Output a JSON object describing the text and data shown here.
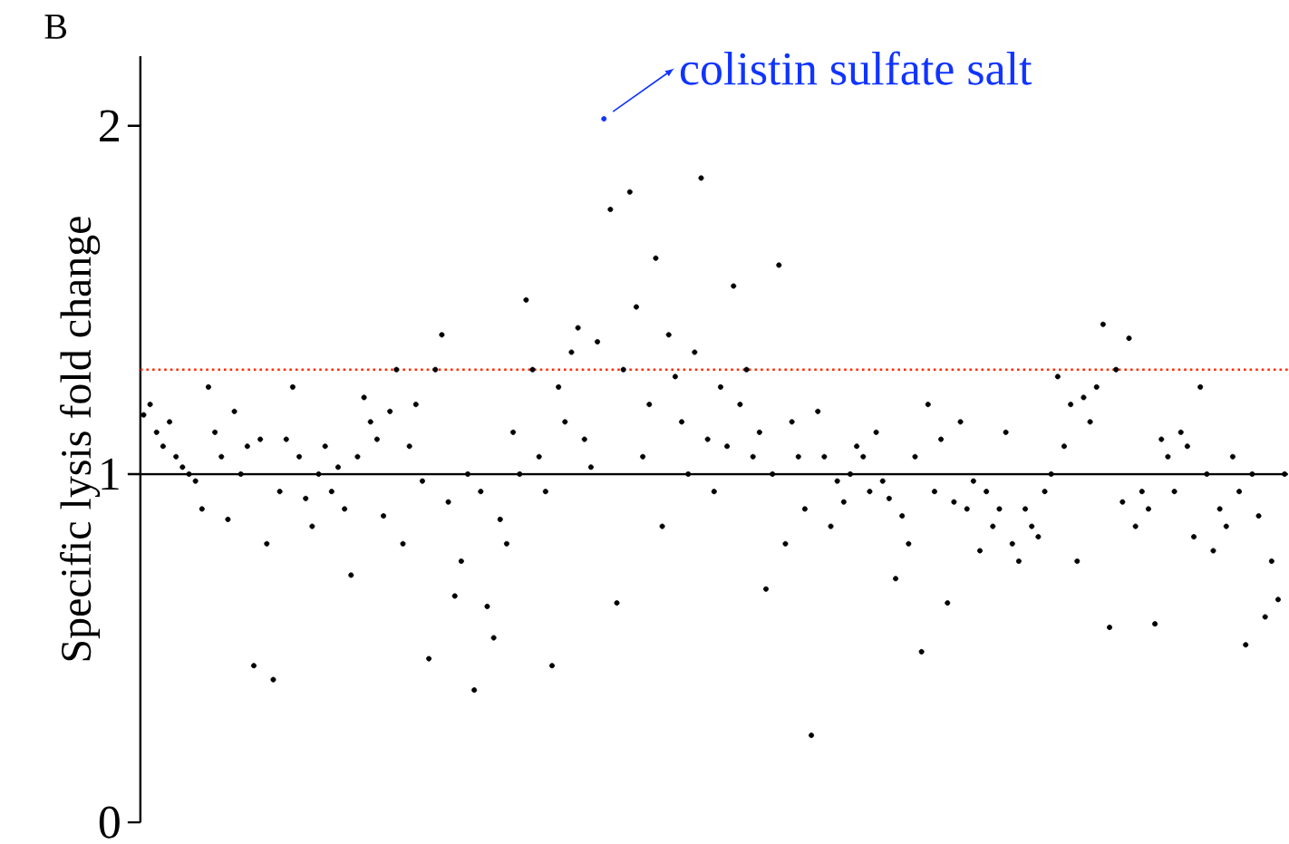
{
  "chart_data": {
    "type": "scatter",
    "title": "B",
    "ylabel": "Specific lysis fold change",
    "categories": [
      null,
      null,
      null,
      null,
      null,
      null,
      null,
      null,
      null,
      null,
      null,
      null,
      null,
      null,
      null,
      null,
      null,
      null,
      null,
      null,
      null,
      null,
      null,
      null,
      null,
      null,
      null,
      null,
      null,
      null,
      null,
      null,
      null,
      null,
      null,
      null,
      null,
      null,
      null,
      null,
      null,
      null,
      null,
      null,
      null,
      null,
      null,
      null,
      null,
      null,
      null,
      null,
      null,
      null,
      null,
      null,
      null,
      null,
      null,
      null,
      null,
      null,
      null,
      null,
      null,
      null,
      null,
      null,
      null,
      null,
      null,
      null,
      null,
      null,
      null,
      null,
      null,
      null,
      null,
      null,
      null,
      null,
      null,
      null,
      null,
      null,
      null,
      null,
      null,
      null,
      null,
      null,
      null,
      null,
      null,
      null,
      null,
      null,
      null,
      null,
      null,
      null,
      null,
      null,
      null,
      null,
      null,
      null,
      null,
      null,
      null,
      null,
      null,
      null,
      null,
      null,
      null,
      null,
      null,
      null,
      null,
      null,
      null,
      null,
      null,
      null,
      null,
      null,
      null,
      null,
      null,
      null,
      null,
      null,
      null,
      null,
      null,
      null,
      null,
      null,
      null,
      null,
      null,
      null,
      null,
      null,
      null,
      null,
      null,
      null,
      null,
      null,
      null,
      null,
      null,
      null,
      null,
      null,
      null,
      null,
      null,
      null,
      null,
      null,
      null,
      null,
      null,
      null,
      null,
      null,
      null,
      null,
      null,
      null,
      null,
      null,
      null
    ],
    "values": [
      1.17,
      1.2,
      1.12,
      1.08,
      1.15,
      1.05,
      1.02,
      1.0,
      0.98,
      0.9,
      1.25,
      1.12,
      1.05,
      0.87,
      1.18,
      1.0,
      1.08,
      0.45,
      1.1,
      0.8,
      0.41,
      0.95,
      1.1,
      1.25,
      1.05,
      0.93,
      0.85,
      1.0,
      1.08,
      0.95,
      1.02,
      0.9,
      0.71,
      1.05,
      1.22,
      1.15,
      1.1,
      0.88,
      1.18,
      1.3,
      0.8,
      1.08,
      1.2,
      0.98,
      0.47,
      1.3,
      1.4,
      0.92,
      0.65,
      0.75,
      1.0,
      0.38,
      0.95,
      0.62,
      0.53,
      0.87,
      0.8,
      1.12,
      1.0,
      1.5,
      1.3,
      1.05,
      0.95,
      0.45,
      1.25,
      1.15,
      1.35,
      1.42,
      1.1,
      1.02,
      1.38,
      2.02,
      1.76,
      0.63,
      1.3,
      1.81,
      1.48,
      1.05,
      1.2,
      1.62,
      0.85,
      1.4,
      1.28,
      1.15,
      1.0,
      1.35,
      1.85,
      1.1,
      0.95,
      1.25,
      1.08,
      1.54,
      1.2,
      1.3,
      1.05,
      1.12,
      0.67,
      1.0,
      1.6,
      0.8,
      1.15,
      1.05,
      0.9,
      0.25,
      1.18,
      1.05,
      0.85,
      0.98,
      0.92,
      1.0,
      1.08,
      1.05,
      0.95,
      1.12,
      0.98,
      0.93,
      0.7,
      0.88,
      0.8,
      1.05,
      0.49,
      1.2,
      0.95,
      1.1,
      0.63,
      0.92,
      1.15,
      0.9,
      0.98,
      0.78,
      0.95,
      0.85,
      0.9,
      1.12,
      0.8,
      0.75,
      0.9,
      0.85,
      0.82,
      0.95,
      1.0,
      1.28,
      1.08,
      1.2,
      0.75,
      1.22,
      1.15,
      1.25,
      1.43,
      0.56,
      1.3,
      0.92,
      1.39,
      0.85,
      0.95,
      0.9,
      0.57,
      1.1,
      1.05,
      0.95,
      1.12,
      1.08,
      0.82,
      1.25,
      1.0,
      0.78,
      0.9,
      0.85,
      1.05,
      0.95,
      0.51,
      1.0,
      0.88,
      0.59,
      0.75,
      0.64,
      1.0
    ],
    "colors": [
      "#000000",
      "#000000",
      "#000000",
      "#000000",
      "#000000",
      "#000000",
      "#000000",
      "#000000",
      "#000000",
      "#000000",
      "#000000",
      "#000000",
      "#000000",
      "#000000",
      "#000000",
      "#000000",
      "#000000",
      "#000000",
      "#000000",
      "#000000",
      "#000000",
      "#000000",
      "#000000",
      "#000000",
      "#000000",
      "#000000",
      "#000000",
      "#000000",
      "#000000",
      "#000000",
      "#000000",
      "#000000",
      "#000000",
      "#000000",
      "#000000",
      "#000000",
      "#000000",
      "#000000",
      "#000000",
      "#000000",
      "#000000",
      "#000000",
      "#000000",
      "#000000",
      "#000000",
      "#000000",
      "#000000",
      "#000000",
      "#000000",
      "#000000",
      "#000000",
      "#000000",
      "#000000",
      "#000000",
      "#000000",
      "#000000",
      "#000000",
      "#000000",
      "#000000",
      "#000000",
      "#000000",
      "#000000",
      "#000000",
      "#000000",
      "#000000",
      "#000000",
      "#000000",
      "#000000",
      "#000000",
      "#000000",
      "#000000",
      "#1034ff",
      "#000000",
      "#000000",
      "#000000",
      "#000000",
      "#000000",
      "#000000",
      "#000000",
      "#000000",
      "#000000",
      "#000000",
      "#000000",
      "#000000",
      "#000000",
      "#000000",
      "#000000",
      "#000000",
      "#000000",
      "#000000",
      "#000000",
      "#000000",
      "#000000",
      "#000000",
      "#000000",
      "#000000",
      "#000000",
      "#000000",
      "#000000",
      "#000000",
      "#000000",
      "#000000",
      "#000000",
      "#000000",
      "#000000",
      "#000000",
      "#000000",
      "#000000",
      "#000000",
      "#000000",
      "#000000",
      "#000000",
      "#000000",
      "#000000",
      "#000000",
      "#000000",
      "#000000",
      "#000000",
      "#000000",
      "#000000",
      "#000000",
      "#000000",
      "#000000",
      "#000000",
      "#000000",
      "#000000",
      "#000000",
      "#000000",
      "#000000",
      "#000000",
      "#000000",
      "#000000",
      "#000000",
      "#000000",
      "#000000",
      "#000000",
      "#000000",
      "#000000",
      "#000000",
      "#000000",
      "#000000",
      "#000000",
      "#000000",
      "#000000",
      "#000000",
      "#000000",
      "#000000",
      "#000000",
      "#000000",
      "#000000",
      "#000000",
      "#000000",
      "#000000",
      "#000000",
      "#000000",
      "#000000",
      "#000000",
      "#000000",
      "#000000",
      "#000000",
      "#000000",
      "#000000",
      "#000000",
      "#000000",
      "#000000",
      "#000000",
      "#000000",
      "#000000",
      "#000000",
      "#000000",
      "#000000",
      "#000000",
      "#000000",
      "#000000",
      "#000000",
      "#000000",
      "#000000"
    ],
    "ylim": [
      0,
      2.2
    ],
    "yticks": [
      0,
      1,
      2
    ],
    "tick_labels": "y",
    "marker": "circle",
    "ref_lines": [
      {
        "axis": "y",
        "value": 1,
        "color": "#000000",
        "line_style": "solid"
      },
      {
        "axis": "y",
        "value": 1.3,
        "color": "#ff2a00",
        "line_style": "dotted"
      }
    ],
    "annotations": [
      "colistin sulfate salt"
    ]
  }
}
